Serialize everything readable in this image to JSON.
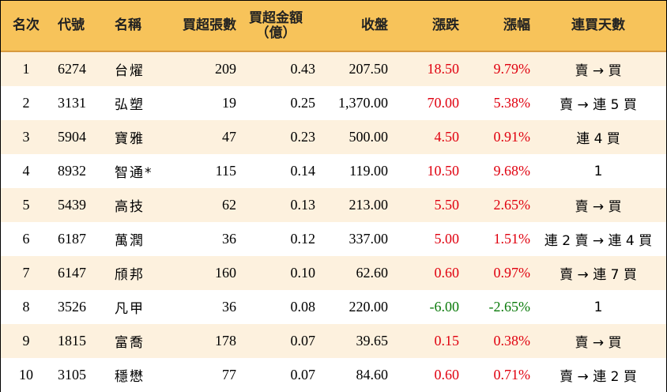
{
  "headers": {
    "rank": "名次",
    "code": "代號",
    "name": "名稱",
    "lots": "買超張數",
    "amount_line1": "買超金額",
    "amount_line2": "（億）",
    "close": "收盤",
    "change": "漲跌",
    "pct": "漲幅",
    "streak": "連買天數"
  },
  "colors": {
    "header_bg": "#f7c35a",
    "stripe_bg": "#fdf1de",
    "up": "#e0000f",
    "down": "#0a7a0a"
  },
  "rows": [
    {
      "rank": "1",
      "code": "6274",
      "name": "台燿",
      "lots": "209",
      "amount": "0.43",
      "close": "207.50",
      "change": "18.50",
      "pct": "9.79%",
      "streak": "賣 → 買",
      "dir": "up"
    },
    {
      "rank": "2",
      "code": "3131",
      "name": "弘塑",
      "lots": "19",
      "amount": "0.25",
      "close": "1,370.00",
      "change": "70.00",
      "pct": "5.38%",
      "streak": "賣 → 連 5 買",
      "dir": "up"
    },
    {
      "rank": "3",
      "code": "5904",
      "name": "寶雅",
      "lots": "47",
      "amount": "0.23",
      "close": "500.00",
      "change": "4.50",
      "pct": "0.91%",
      "streak": "連 4 買",
      "dir": "up"
    },
    {
      "rank": "4",
      "code": "8932",
      "name": "智通*",
      "lots": "115",
      "amount": "0.14",
      "close": "119.00",
      "change": "10.50",
      "pct": "9.68%",
      "streak": "1",
      "dir": "up"
    },
    {
      "rank": "5",
      "code": "5439",
      "name": "高技",
      "lots": "62",
      "amount": "0.13",
      "close": "213.00",
      "change": "5.50",
      "pct": "2.65%",
      "streak": "賣 → 買",
      "dir": "up"
    },
    {
      "rank": "6",
      "code": "6187",
      "name": "萬潤",
      "lots": "36",
      "amount": "0.12",
      "close": "337.00",
      "change": "5.00",
      "pct": "1.51%",
      "streak": "連 2 賣 → 連 4 買",
      "dir": "up"
    },
    {
      "rank": "7",
      "code": "6147",
      "name": "頎邦",
      "lots": "160",
      "amount": "0.10",
      "close": "62.60",
      "change": "0.60",
      "pct": "0.97%",
      "streak": "賣 → 連 7 買",
      "dir": "up"
    },
    {
      "rank": "8",
      "code": "3526",
      "name": "凡甲",
      "lots": "36",
      "amount": "0.08",
      "close": "220.00",
      "change": "-6.00",
      "pct": "-2.65%",
      "streak": "1",
      "dir": "down"
    },
    {
      "rank": "9",
      "code": "1815",
      "name": "富喬",
      "lots": "178",
      "amount": "0.07",
      "close": "39.65",
      "change": "0.15",
      "pct": "0.38%",
      "streak": "賣 → 買",
      "dir": "up"
    },
    {
      "rank": "10",
      "code": "3105",
      "name": "穩懋",
      "lots": "77",
      "amount": "0.07",
      "close": "84.60",
      "change": "0.60",
      "pct": "0.71%",
      "streak": "賣 → 連 2 買",
      "dir": "up"
    }
  ]
}
